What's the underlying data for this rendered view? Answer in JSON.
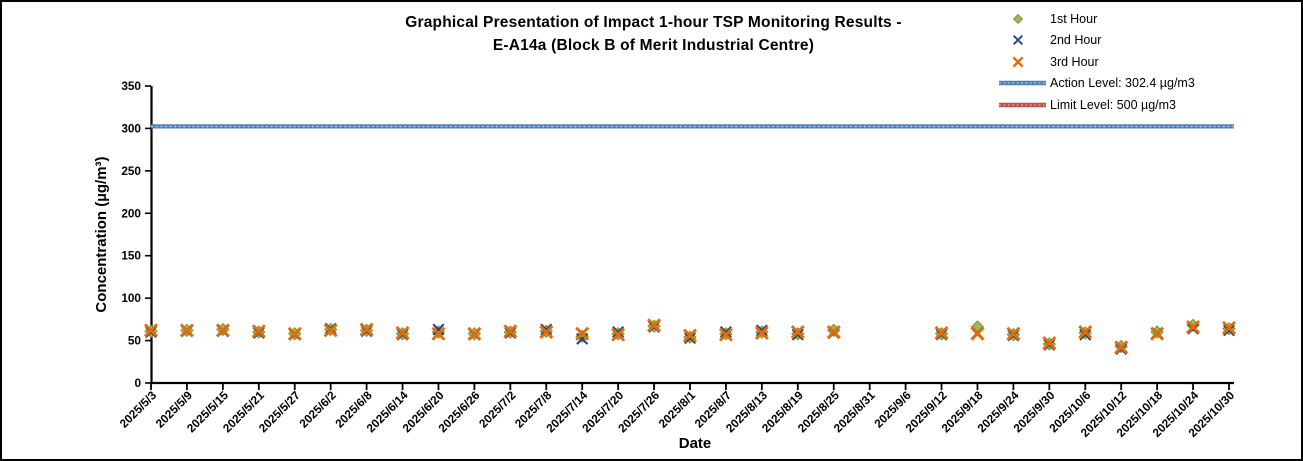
{
  "chart_data": {
    "type": "scatter",
    "title_line1": "Graphical Presentation of Impact 1-hour TSP Monitoring Results -",
    "title_line2": "E-A14a (Block B of Merit Industrial Centre)",
    "xlabel": "Date",
    "ylabel": "Concentration (µg/m³)",
    "ylim": [
      0,
      350
    ],
    "ytick_step": 50,
    "grid": false,
    "legend_position": "top-right",
    "xtick_labels": [
      "2025/5/3",
      "2025/5/9",
      "2025/5/15",
      "2025/5/21",
      "2025/5/27",
      "2025/6/2",
      "2025/6/8",
      "2025/6/14",
      "2025/6/20",
      "2025/6/26",
      "2025/7/2",
      "2025/7/8",
      "2025/7/14",
      "2025/7/20",
      "2025/7/26",
      "2025/8/1",
      "2025/8/7",
      "2025/8/13",
      "2025/8/19",
      "2025/8/25",
      "2025/8/31",
      "2025/9/6",
      "2025/9/12",
      "2025/9/18",
      "2025/9/24",
      "2025/9/30",
      "2025/10/6",
      "2025/10/12",
      "2025/10/18",
      "2025/10/24",
      "2025/10/30"
    ],
    "dates": [
      "2025/5/3",
      "2025/5/9",
      "2025/5/15",
      "2025/5/21",
      "2025/5/27",
      "2025/6/2",
      "2025/6/8",
      "2025/6/14",
      "2025/6/20",
      "2025/6/26",
      "2025/7/2",
      "2025/7/8",
      "2025/7/14",
      "2025/7/20",
      "2025/7/26",
      "2025/8/1",
      "2025/8/7",
      "2025/8/13",
      "2025/8/19",
      "2025/8/25",
      "2025/9/12",
      "2025/9/18",
      "2025/9/24",
      "2025/9/30",
      "2025/10/6",
      "2025/10/12",
      "2025/10/18",
      "2025/10/24",
      "2025/10/30"
    ],
    "series": [
      {
        "name": "1st Hour",
        "marker": "diamond",
        "color": "#9BBB59",
        "edge_color": "#77933C",
        "values": [
          61,
          62,
          63,
          60,
          58,
          63,
          62,
          58,
          60,
          58,
          60,
          61,
          55,
          58,
          67,
          54,
          58,
          60,
          58,
          62,
          58,
          66,
          57,
          46,
          59,
          43,
          60,
          68,
          64
        ]
      },
      {
        "name": "2nd Hour",
        "marker": "x",
        "color": "#1F497D",
        "values": [
          60,
          61,
          61,
          59,
          57,
          64,
          61,
          57,
          63,
          57,
          59,
          63,
          52,
          60,
          66,
          53,
          60,
          62,
          57,
          59,
          57,
          59,
          56,
          45,
          57,
          40,
          59,
          64,
          62
        ]
      },
      {
        "name": "3rd Hour",
        "marker": "x-bold",
        "color": "#E36C09",
        "values": [
          62,
          62,
          62,
          61,
          58,
          62,
          63,
          59,
          58,
          58,
          61,
          60,
          58,
          57,
          68,
          56,
          57,
          59,
          60,
          60,
          59,
          58,
          58,
          47,
          60,
          42,
          58,
          66,
          65
        ]
      }
    ],
    "reference_lines": [
      {
        "name": "Action Level: 302.4 µg/m3",
        "value": 302.4,
        "color": "#4F81BD",
        "pattern_color": "#A7C4E5",
        "visible_in_plot": true
      },
      {
        "name": "Limit Level: 500 µg/m3",
        "value": 500,
        "color": "#C0504D",
        "pattern_color": "#E0A3A1",
        "visible_in_plot": false
      }
    ]
  }
}
